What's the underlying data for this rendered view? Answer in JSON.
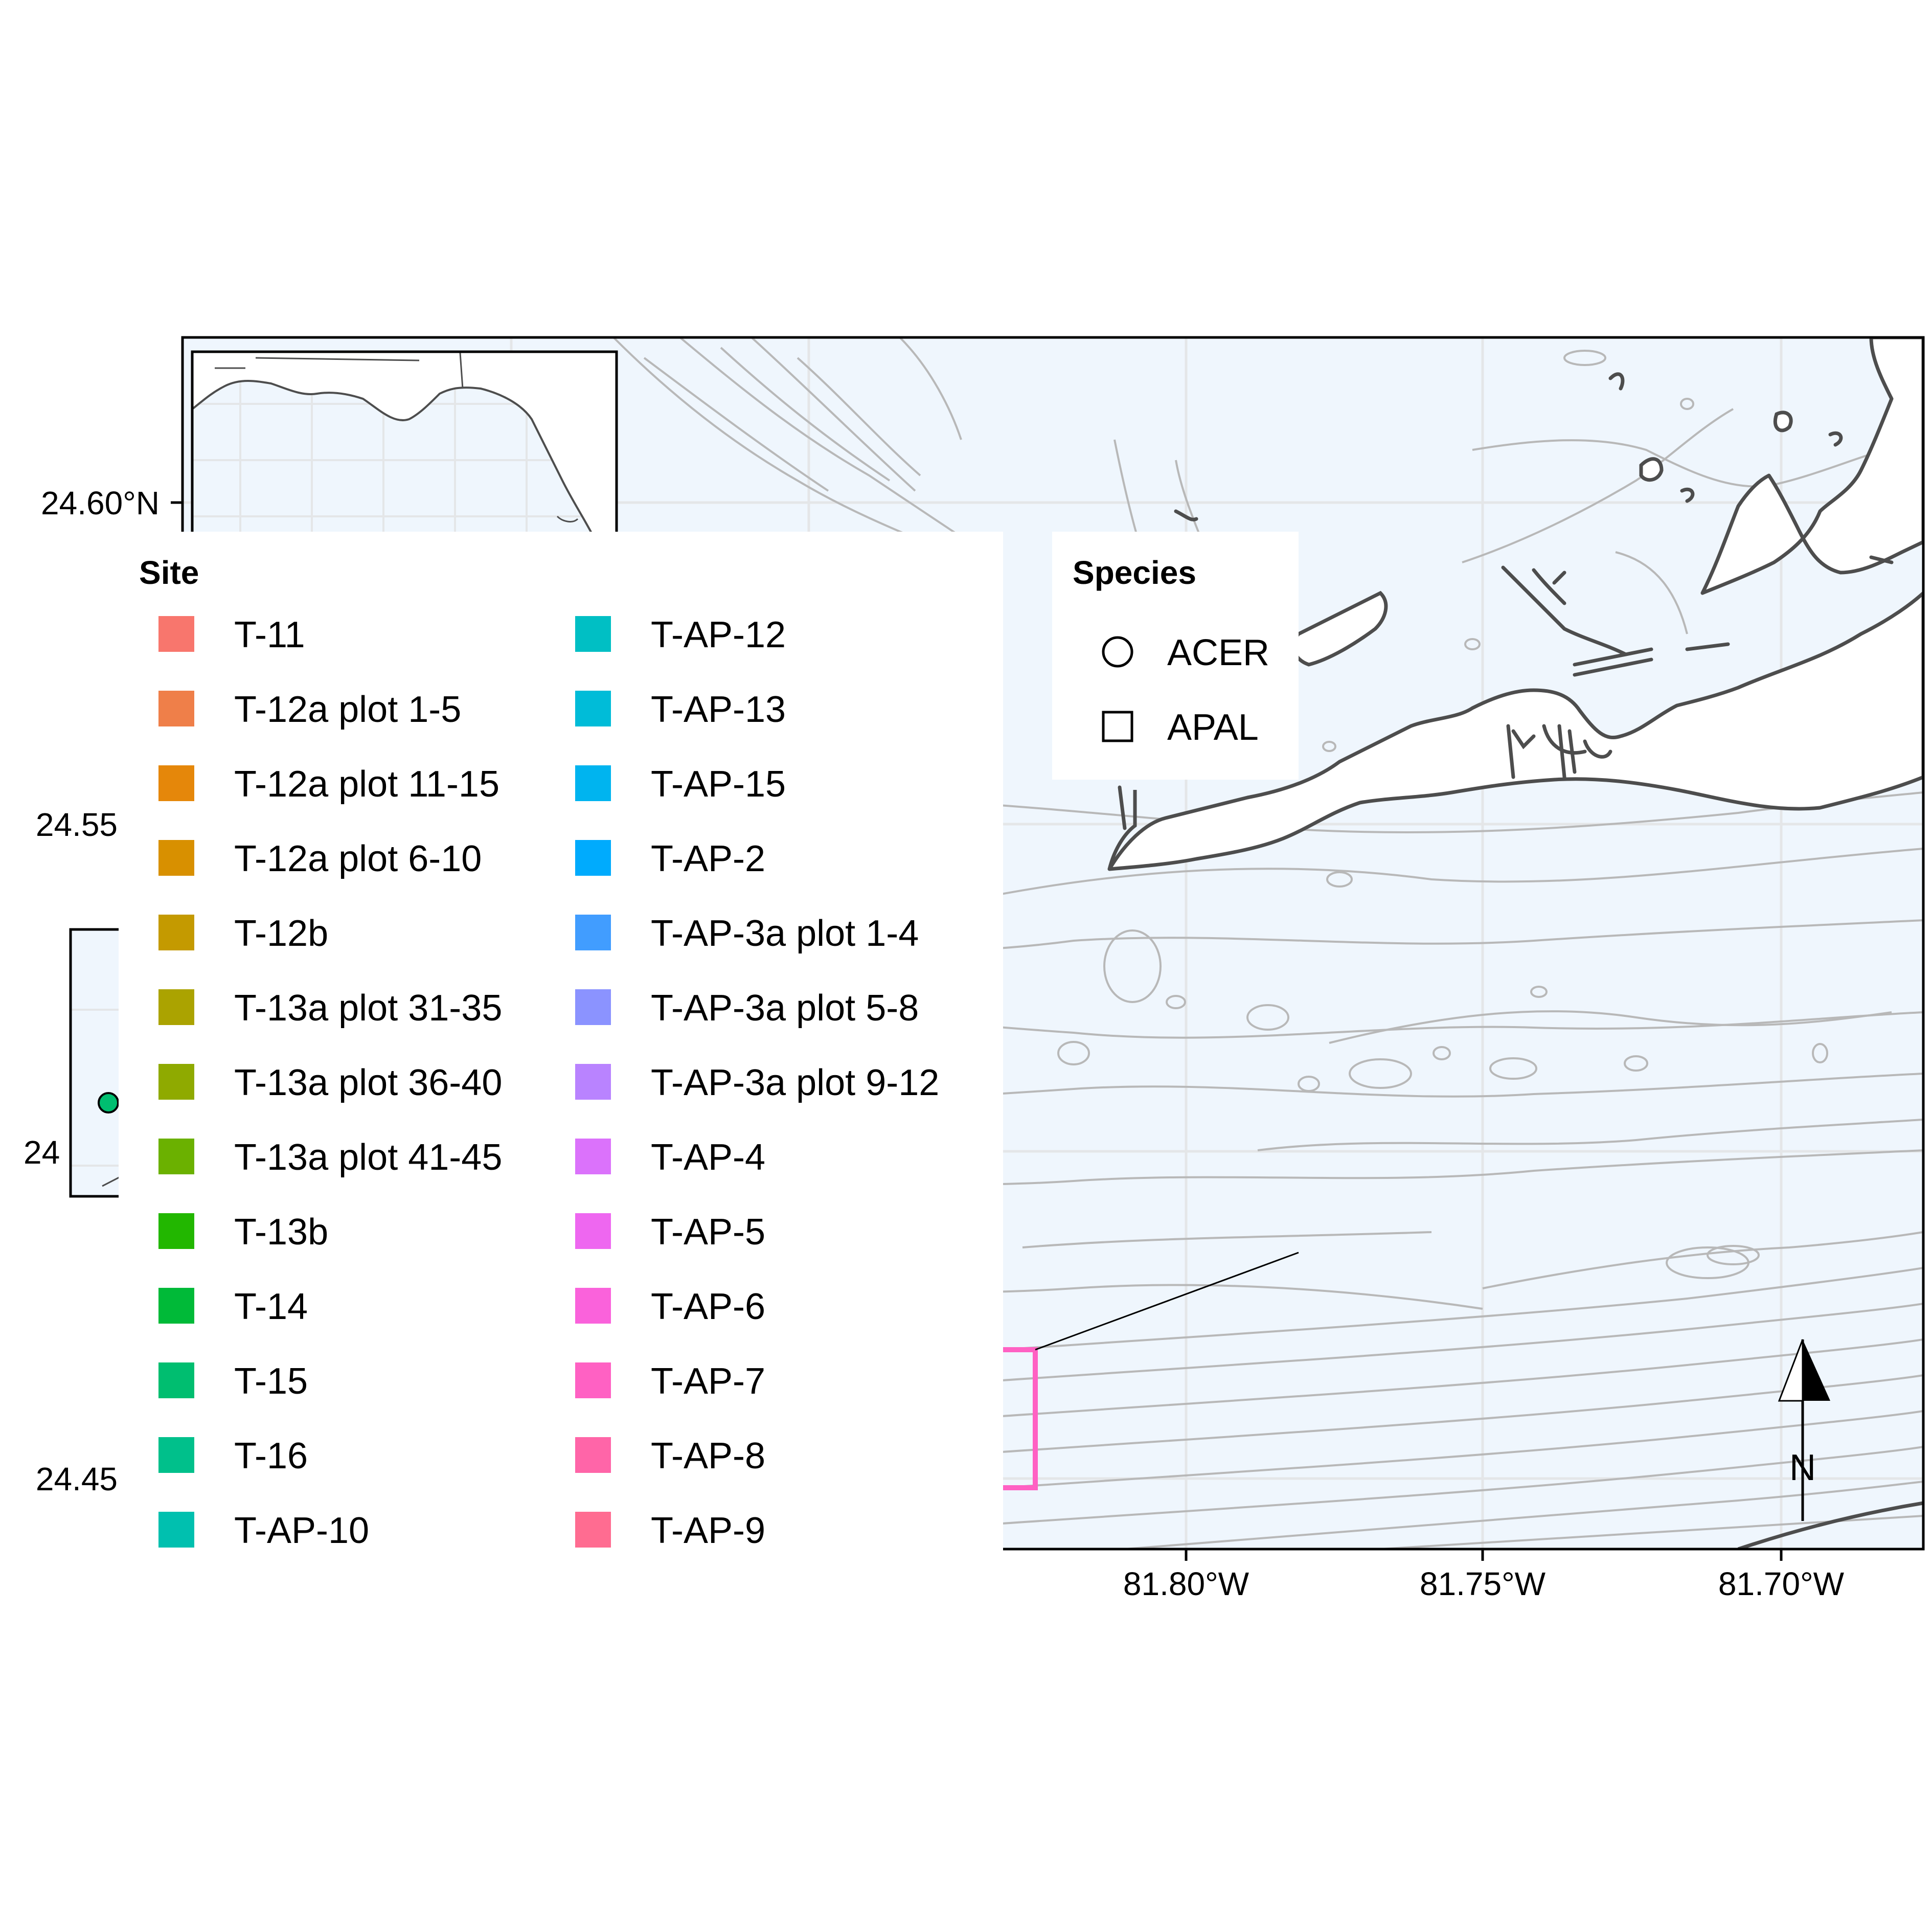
{
  "map": {
    "latitude_labels": [
      "24.60°N",
      "24.55",
      "24.45",
      "24"
    ],
    "longitude_labels": [
      "81.80°W",
      "81.75°W",
      "81.70°W"
    ],
    "north_arrow_label": "N"
  },
  "legends": {
    "site": {
      "title": "Site",
      "items": [
        {
          "label": "T-11",
          "color": "#F8766D"
        },
        {
          "label": "T-12a plot 1-5",
          "color": "#EF7F49"
        },
        {
          "label": "T-12a plot 11-15",
          "color": "#E5870A"
        },
        {
          "label": "T-12a plot 6-10",
          "color": "#D89000"
        },
        {
          "label": "T-12b",
          "color": "#C49A00"
        },
        {
          "label": "T-13a plot 31-35",
          "color": "#ABA300"
        },
        {
          "label": "T-13a plot 36-40",
          "color": "#8FAA00"
        },
        {
          "label": "T-13a plot 41-45",
          "color": "#6BB100"
        },
        {
          "label": "T-13b",
          "color": "#22B700"
        },
        {
          "label": "T-14",
          "color": "#00BA38"
        },
        {
          "label": "T-15",
          "color": "#00BE70"
        },
        {
          "label": "T-16",
          "color": "#00C08B"
        },
        {
          "label": "T-AP-10",
          "color": "#00C0AF"
        },
        {
          "label": "T-AP-12",
          "color": "#00BFC4"
        },
        {
          "label": "T-AP-13",
          "color": "#00BCD8"
        },
        {
          "label": "T-AP-15",
          "color": "#00B4EF"
        },
        {
          "label": "T-AP-2",
          "color": "#00ABFD"
        },
        {
          "label": "T-AP-3a plot 1-4",
          "color": "#419DFF"
        },
        {
          "label": "T-AP-3a plot 5-8",
          "color": "#8B93FF"
        },
        {
          "label": "T-AP-3a plot 9-12",
          "color": "#B983FF"
        },
        {
          "label": "T-AP-4",
          "color": "#DB72FB"
        },
        {
          "label": "T-AP-5",
          "color": "#EE67F0"
        },
        {
          "label": "T-AP-6",
          "color": "#FA62DB"
        },
        {
          "label": "T-AP-7",
          "color": "#FF61C3"
        },
        {
          "label": "T-AP-8",
          "color": "#FF65A8"
        },
        {
          "label": "T-AP-9",
          "color": "#FF6C91"
        }
      ]
    },
    "species": {
      "title": "Species",
      "items": [
        {
          "label": "ACER",
          "shape": "circle"
        },
        {
          "label": "APAL",
          "shape": "square"
        }
      ]
    }
  },
  "colors": {
    "water": "#EFF6FD",
    "grid": "#E4E6E8",
    "contour": "#B8B8B8",
    "coastline": "#4D4D4D",
    "highlight_box": "#FF61C3",
    "point_fill": "#00BE70"
  }
}
